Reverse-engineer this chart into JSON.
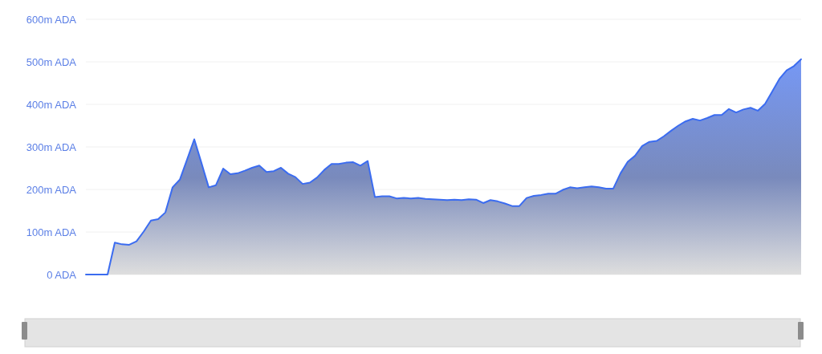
{
  "chart_data": {
    "type": "area",
    "categories": [
      null,
      null,
      null,
      null,
      null,
      null,
      null,
      null,
      null,
      null,
      null,
      null,
      null,
      null,
      null,
      null,
      null,
      null,
      null,
      null,
      null,
      null,
      null,
      null,
      null,
      null,
      null,
      null,
      null,
      null,
      null,
      null,
      null,
      null,
      null,
      null,
      null,
      null,
      null,
      null,
      null,
      null,
      null,
      null,
      null,
      null,
      null,
      null,
      null,
      null,
      null,
      null,
      null,
      null,
      null,
      null,
      null,
      null,
      null,
      null,
      null,
      null,
      null,
      null,
      null,
      null,
      null,
      null,
      null,
      null,
      null,
      null,
      null,
      null,
      null,
      null,
      null,
      null,
      null,
      null,
      null,
      null,
      null,
      null,
      null,
      null,
      null,
      null,
      null,
      null,
      null,
      null,
      null,
      null,
      null,
      null,
      null,
      null,
      null,
      null
    ],
    "values": [
      0,
      0,
      0,
      0,
      75,
      71,
      70,
      78,
      101,
      127,
      130,
      146,
      205,
      223,
      270,
      318,
      262,
      205,
      210,
      249,
      236,
      238,
      244,
      251,
      256,
      241,
      243,
      251,
      237,
      229,
      213,
      216,
      228,
      246,
      260,
      260,
      263,
      264,
      256,
      267,
      182,
      184,
      184,
      179,
      180,
      179,
      180,
      178,
      177,
      176,
      175,
      176,
      175,
      177,
      176,
      168,
      175,
      172,
      167,
      161,
      161,
      180,
      185,
      187,
      190,
      190,
      199,
      205,
      203,
      205,
      207,
      205,
      202,
      202,
      238,
      265,
      279,
      302,
      312,
      314,
      325,
      338,
      350,
      360,
      366,
      362,
      368,
      375,
      375,
      389,
      381,
      388,
      392,
      385,
      401,
      430,
      460,
      480,
      490,
      506
    ],
    "color": "#3b6cf0",
    "ylim": [
      0,
      600
    ],
    "yticks": [
      {
        "value": 0,
        "label": "0 ADA"
      },
      {
        "value": 100,
        "label": "100m ADA"
      },
      {
        "value": 200,
        "label": "200m ADA"
      },
      {
        "value": 300,
        "label": "300m ADA"
      },
      {
        "value": 400,
        "label": "400m ADA"
      },
      {
        "value": 500,
        "label": "500m ADA"
      },
      {
        "value": 600,
        "label": "600m ADA"
      }
    ],
    "grid": "y"
  }
}
